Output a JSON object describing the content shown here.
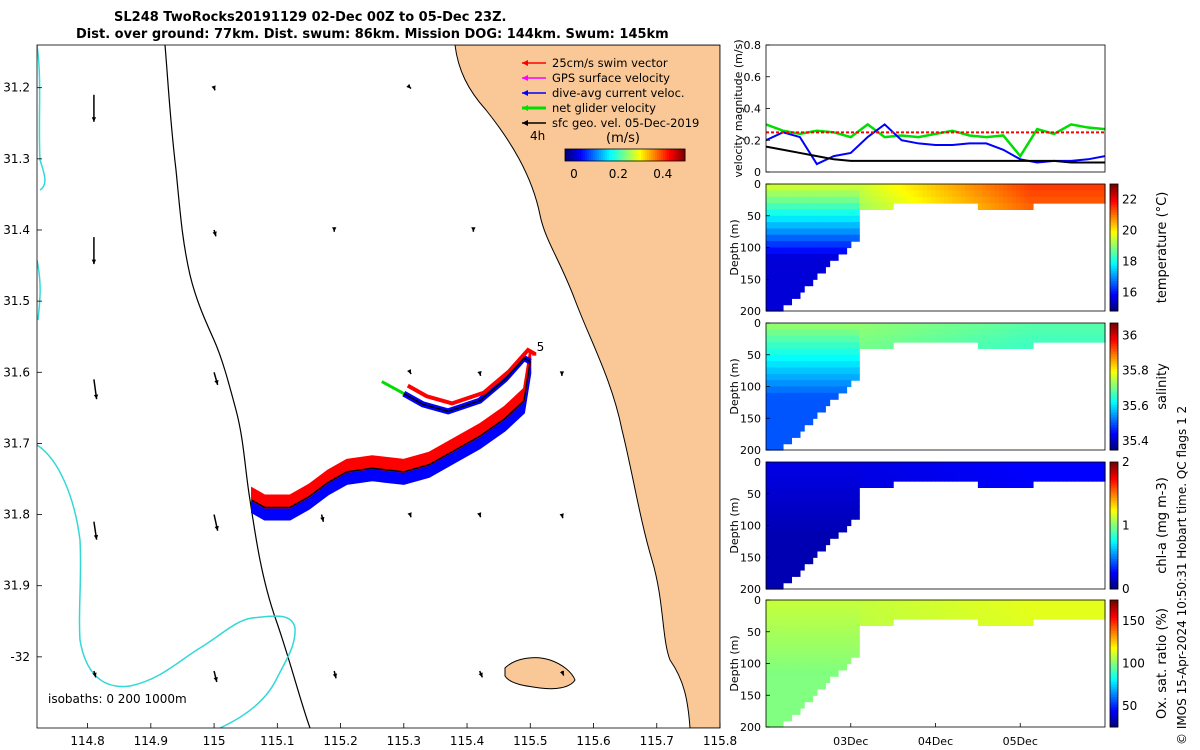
{
  "header": {
    "title_line1": "SL248 TwoRocks20191129 02-Dec 00Z to 05-Dec 23Z.",
    "title_line2": "Dist. over ground: 77km. Dist. swum: 86km. Mission DOG: 144km. Swum: 145km"
  },
  "side_label": "© IMOS 15-Apr-2024 10:50:31 Hobart time. QC flags 1  2",
  "colors": {
    "land": "#f9c896",
    "coastline": "#000000",
    "isobath": "#35d7d7",
    "swim_vector": "#ff0000",
    "dive_avg": "#0000ff",
    "net_velocity": "#00dd00",
    "sfc_geo": "#000000",
    "gps_sfc": "#ff00ff"
  },
  "chart_data": [
    {
      "type": "map",
      "xlim": [
        114.72,
        115.8
      ],
      "ylim": [
        -32.1,
        -31.14
      ],
      "xticks": [
        "114.8",
        "114.9",
        "115",
        "115.1",
        "115.2",
        "115.3",
        "115.4",
        "115.5",
        "115.6",
        "115.7",
        "115.8"
      ],
      "yticks": [
        "31.2",
        "31.3",
        "31.4",
        "31.5",
        "31.6",
        "31.7",
        "31.8",
        "31.9",
        "-32"
      ],
      "legend": {
        "placement": "top-right",
        "entries": [
          {
            "label": "25cm/s swim vector",
            "color": "#ff0000"
          },
          {
            "label": "GPS surface velocity",
            "color": "#ff00ff"
          },
          {
            "label": "dive-avg current veloc.",
            "color": "#0000ff"
          },
          {
            "label": "net glider velocity",
            "color": "#00dd00"
          },
          {
            "label": "sfc geo. vel. 05-Dec-2019",
            "color": "#000000"
          }
        ]
      },
      "colorbar": {
        "label": "(m/s)",
        "ticks": [
          "0",
          "0.2",
          "0.4"
        ],
        "range": [
          -0.04,
          0.5
        ],
        "time_label": "4h"
      },
      "isobaths_label": "isobaths: 0   200  1000m",
      "track_end_label": "5",
      "glider_track": [
        [
          115.06,
          -31.78
        ],
        [
          115.08,
          -31.79
        ],
        [
          115.12,
          -31.79
        ],
        [
          115.15,
          -31.775
        ],
        [
          115.18,
          -31.755
        ],
        [
          115.21,
          -31.74
        ],
        [
          115.25,
          -31.735
        ],
        [
          115.3,
          -31.74
        ],
        [
          115.34,
          -31.73
        ],
        [
          115.38,
          -31.71
        ],
        [
          115.42,
          -31.69
        ],
        [
          115.46,
          -31.665
        ],
        [
          115.49,
          -31.64
        ],
        [
          115.5,
          -31.585
        ],
        [
          115.49,
          -31.58
        ],
        [
          115.46,
          -31.61
        ],
        [
          115.42,
          -31.64
        ],
        [
          115.37,
          -31.655
        ],
        [
          115.33,
          -31.645
        ],
        [
          115.3,
          -31.63
        ]
      ],
      "sfc_vectors": [
        {
          "lon": 114.81,
          "lat": -31.21,
          "u": 0,
          "v": -0.3
        },
        {
          "lon": 114.81,
          "lat": -31.41,
          "u": 0,
          "v": -0.3
        },
        {
          "lon": 114.81,
          "lat": -31.61,
          "u": 0.03,
          "v": -0.22
        },
        {
          "lon": 114.81,
          "lat": -31.81,
          "u": 0.03,
          "v": -0.2
        },
        {
          "lon": 114.81,
          "lat": -32.02,
          "u": 0.02,
          "v": -0.07
        },
        {
          "lon": 115.0,
          "lat": -31.2,
          "u": 0.01,
          "v": -0.03
        },
        {
          "lon": 115.0,
          "lat": -31.4,
          "u": 0.02,
          "v": -0.07
        },
        {
          "lon": 115.0,
          "lat": -31.6,
          "u": 0.04,
          "v": -0.14
        },
        {
          "lon": 115.0,
          "lat": -31.8,
          "u": 0.04,
          "v": -0.18
        },
        {
          "lon": 115.0,
          "lat": -32.02,
          "u": 0.03,
          "v": -0.12
        },
        {
          "lon": 115.17,
          "lat": -31.8,
          "u": 0.02,
          "v": -0.08
        },
        {
          "lon": 115.19,
          "lat": -31.4,
          "u": 0,
          "v": -0.02
        },
        {
          "lon": 115.19,
          "lat": -32.02,
          "u": 0.02,
          "v": -0.08
        },
        {
          "lon": 115.31,
          "lat": -31.8,
          "u": 0.01,
          "v": -0.03
        },
        {
          "lon": 115.31,
          "lat": -31.6,
          "u": 0.01,
          "v": -0.02
        },
        {
          "lon": 115.31,
          "lat": -31.2,
          "u": 0.01,
          "v": -0.01
        },
        {
          "lon": 115.41,
          "lat": -31.4,
          "u": 0,
          "v": -0.02
        },
        {
          "lon": 115.42,
          "lat": -31.6,
          "u": 0.01,
          "v": -0.04
        },
        {
          "lon": 115.42,
          "lat": -31.8,
          "u": 0.01,
          "v": -0.03
        },
        {
          "lon": 115.42,
          "lat": -32.02,
          "u": 0.03,
          "v": -0.07
        },
        {
          "lon": 115.55,
          "lat": -31.6,
          "u": 0,
          "v": -0.04
        },
        {
          "lon": 115.55,
          "lat": -31.8,
          "u": 0.01,
          "v": -0.04
        },
        {
          "lon": 115.55,
          "lat": -32.02,
          "u": 0.02,
          "v": -0.05
        }
      ]
    },
    {
      "type": "line",
      "ylabel": "velocity magnitude (m/s)",
      "ylim": [
        0,
        0.8
      ],
      "yticks": [
        "0",
        "0.2",
        "0.4",
        "0.6",
        "0.8"
      ],
      "x_days": [
        0,
        0.2,
        0.4,
        0.6,
        0.8,
        1.0,
        1.2,
        1.4,
        1.6,
        1.8,
        2.0,
        2.2,
        2.4,
        2.6,
        2.8,
        3.0,
        3.2,
        3.4,
        3.6,
        3.8,
        4.0
      ],
      "series": [
        {
          "color": "#00dd00",
          "values": [
            0.3,
            0.26,
            0.24,
            0.26,
            0.25,
            0.22,
            0.3,
            0.22,
            0.23,
            0.22,
            0.24,
            0.26,
            0.23,
            0.22,
            0.23,
            0.1,
            0.27,
            0.24,
            0.3,
            0.28,
            0.27
          ]
        },
        {
          "color": "#0000ff",
          "values": [
            0.2,
            0.25,
            0.22,
            0.05,
            0.1,
            0.12,
            0.22,
            0.3,
            0.2,
            0.18,
            0.17,
            0.17,
            0.18,
            0.18,
            0.14,
            0.08,
            0.06,
            0.07,
            0.07,
            0.08,
            0.1
          ]
        },
        {
          "color": "#ff0000",
          "values": [
            0.25,
            0.25,
            0.25,
            0.25,
            0.25,
            0.25,
            0.25,
            0.25,
            0.25,
            0.25,
            0.25,
            0.25,
            0.25,
            0.25,
            0.25,
            0.25,
            0.25,
            0.25,
            0.25,
            0.25,
            0.25
          ]
        },
        {
          "color": "#000000",
          "values": [
            0.16,
            0.14,
            0.12,
            0.1,
            0.08,
            0.07,
            0.07,
            0.07,
            0.07,
            0.07,
            0.07,
            0.07,
            0.07,
            0.07,
            0.07,
            0.07,
            0.07,
            0.07,
            0.06,
            0.06,
            0.06
          ]
        }
      ]
    },
    {
      "type": "heatmap",
      "ylabel": "Depth (m)",
      "cbar_label": "temperature (°C)",
      "cbar_ticks": [
        "16",
        "18",
        "20",
        "22"
      ],
      "cbar_range": [
        14.8,
        23.0
      ],
      "colormap": "jet",
      "yticks": [
        "0",
        "50",
        "100",
        "150",
        "200"
      ],
      "surface_value": 19.5,
      "deep_value": 15.5,
      "late_value": 21.5
    },
    {
      "type": "heatmap",
      "ylabel": "Depth (m)",
      "cbar_label": "salinity",
      "cbar_ticks": [
        "35.4",
        "35.6",
        "35.8",
        "36"
      ],
      "cbar_range": [
        35.35,
        36.07
      ],
      "colormap": "jet",
      "yticks": [
        "0",
        "50",
        "100",
        "150",
        "200"
      ],
      "surface_value": 35.72,
      "deep_value": 35.5,
      "late_value": 35.68
    },
    {
      "type": "heatmap",
      "ylabel": "Depth (m)",
      "cbar_label": "chl-a (mg m-3)",
      "cbar_ticks": [
        "0",
        "1",
        "2"
      ],
      "cbar_range": [
        0,
        2
      ],
      "colormap": "jet",
      "yticks": [
        "0",
        "50",
        "100",
        "150",
        "200"
      ],
      "surface_value": 0.2,
      "deep_value": 0.1,
      "late_value": 0.25
    },
    {
      "type": "heatmap",
      "ylabel": "Depth (m)",
      "cbar_label": "Ox. sat. ratio (%)",
      "cbar_ticks": [
        "50",
        "100",
        "150"
      ],
      "cbar_range": [
        25,
        175
      ],
      "colormap": "jet",
      "yticks": [
        "0",
        "50",
        "100",
        "150",
        "200"
      ],
      "xticks": [
        "03Dec",
        "04Dec",
        "05Dec"
      ],
      "surface_value": 110,
      "deep_value": 100,
      "late_value": 115
    }
  ]
}
